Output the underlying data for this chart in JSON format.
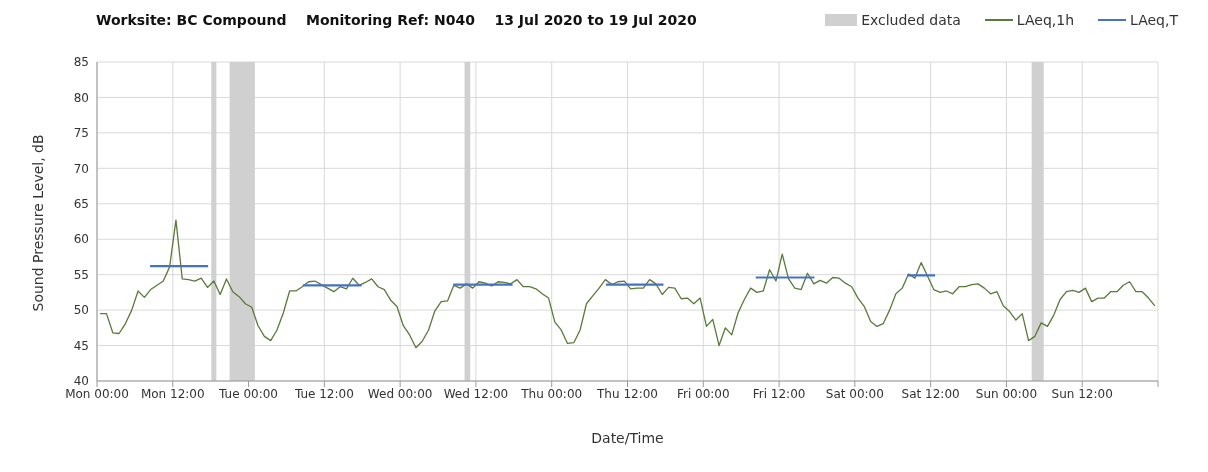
{
  "chart_data": {
    "type": "line",
    "title": "Worksite: BC Compound    Monitoring Ref: N040    13 Jul 2020 to 19 Jul 2020",
    "xlabel": "Date/Time",
    "ylabel": "Sound Pressure Level, dB",
    "xlim": [
      "2020-07-13T00:00",
      "2020-07-20T00:00"
    ],
    "xticks": [
      {
        "value": "2020-07-13T00:00",
        "label": "Mon 00:00"
      },
      {
        "value": "2020-07-13T12:00",
        "label": "Mon 12:00"
      },
      {
        "value": "2020-07-14T00:00",
        "label": "Tue 00:00"
      },
      {
        "value": "2020-07-14T12:00",
        "label": "Tue 12:00"
      },
      {
        "value": "2020-07-15T00:00",
        "label": "Wed 00:00"
      },
      {
        "value": "2020-07-15T12:00",
        "label": "Wed 12:00"
      },
      {
        "value": "2020-07-16T00:00",
        "label": "Thu 00:00"
      },
      {
        "value": "2020-07-16T12:00",
        "label": "Thu 12:00"
      },
      {
        "value": "2020-07-17T00:00",
        "label": "Fri 00:00"
      },
      {
        "value": "2020-07-17T12:00",
        "label": "Fri 12:00"
      },
      {
        "value": "2020-07-18T00:00",
        "label": "Sat 00:00"
      },
      {
        "value": "2020-07-18T12:00",
        "label": "Sat 12:00"
      },
      {
        "value": "2020-07-19T00:00",
        "label": "Sun 00:00"
      },
      {
        "value": "2020-07-19T12:00",
        "label": "Sun 12:00"
      },
      {
        "value": "2020-07-20T00:00",
        "label": null
      }
    ],
    "ylim": [
      40,
      85
    ],
    "yticks": [
      40,
      45,
      50,
      55,
      60,
      65,
      70,
      75,
      80,
      85
    ],
    "grid": true,
    "legend": "top right",
    "marker": "none",
    "line_style": "solid",
    "bands": [
      {
        "axis": "x",
        "from": "2020-07-13T18:06",
        "to": "2020-07-13T18:54",
        "label": "Excluded data",
        "color": "#d0d0d0"
      },
      {
        "axis": "x",
        "from": "2020-07-13T21:00",
        "to": "2020-07-14T01:00",
        "color": "#d0d0d0"
      },
      {
        "axis": "x",
        "from": "2020-07-15T10:12",
        "to": "2020-07-15T11:06",
        "color": "#d0d0d0"
      },
      {
        "axis": "x",
        "from": "2020-07-19T04:00",
        "to": "2020-07-19T05:54",
        "color": "#d0d0d0"
      }
    ],
    "series": [
      {
        "name": "LAeq,1h",
        "color": "#5a7a3a",
        "x": [
          "2020-07-13T00:30",
          "2020-07-13T01:30",
          "2020-07-13T02:30",
          "2020-07-13T03:30",
          "2020-07-13T04:30",
          "2020-07-13T05:30",
          "2020-07-13T06:30",
          "2020-07-13T07:30",
          "2020-07-13T08:30",
          "2020-07-13T09:30",
          "2020-07-13T10:30",
          "2020-07-13T11:30",
          "2020-07-13T12:30",
          "2020-07-13T13:30",
          "2020-07-13T14:30",
          "2020-07-13T15:30",
          "2020-07-13T16:30",
          "2020-07-13T17:30",
          "2020-07-13T18:30",
          "2020-07-13T19:30",
          "2020-07-13T20:30",
          "2020-07-13T21:30",
          "2020-07-13T22:30",
          "2020-07-13T23:30",
          "2020-07-14T00:30",
          "2020-07-14T01:30",
          "2020-07-14T02:30",
          "2020-07-14T03:30",
          "2020-07-14T04:30",
          "2020-07-14T05:30",
          "2020-07-14T06:30",
          "2020-07-14T07:30",
          "2020-07-14T08:30",
          "2020-07-14T09:30",
          "2020-07-14T10:30",
          "2020-07-14T11:30",
          "2020-07-14T12:30",
          "2020-07-14T13:30",
          "2020-07-14T14:30",
          "2020-07-14T15:30",
          "2020-07-14T16:30",
          "2020-07-14T17:30",
          "2020-07-14T18:30",
          "2020-07-14T19:30",
          "2020-07-14T20:30",
          "2020-07-14T21:30",
          "2020-07-14T22:30",
          "2020-07-14T23:30",
          "2020-07-15T00:30",
          "2020-07-15T01:30",
          "2020-07-15T02:30",
          "2020-07-15T03:30",
          "2020-07-15T04:30",
          "2020-07-15T05:30",
          "2020-07-15T06:30",
          "2020-07-15T07:30",
          "2020-07-15T08:30",
          "2020-07-15T09:30",
          "2020-07-15T10:30",
          "2020-07-15T11:30",
          "2020-07-15T12:30",
          "2020-07-15T13:30",
          "2020-07-15T14:30",
          "2020-07-15T15:30",
          "2020-07-15T16:30",
          "2020-07-15T17:30",
          "2020-07-15T18:30",
          "2020-07-15T19:30",
          "2020-07-15T20:30",
          "2020-07-15T21:30",
          "2020-07-15T22:30",
          "2020-07-15T23:30",
          "2020-07-16T00:30",
          "2020-07-16T01:30",
          "2020-07-16T02:30",
          "2020-07-16T03:30",
          "2020-07-16T04:30",
          "2020-07-16T05:30",
          "2020-07-16T06:30",
          "2020-07-16T07:30",
          "2020-07-16T08:30",
          "2020-07-16T09:30",
          "2020-07-16T10:30",
          "2020-07-16T11:30",
          "2020-07-16T12:30",
          "2020-07-16T13:30",
          "2020-07-16T14:30",
          "2020-07-16T15:30",
          "2020-07-16T16:30",
          "2020-07-16T17:30",
          "2020-07-16T18:30",
          "2020-07-16T19:30",
          "2020-07-16T20:30",
          "2020-07-16T21:30",
          "2020-07-16T22:30",
          "2020-07-16T23:30",
          "2020-07-17T00:30",
          "2020-07-17T01:30",
          "2020-07-17T02:30",
          "2020-07-17T03:30",
          "2020-07-17T04:30",
          "2020-07-17T05:30",
          "2020-07-17T06:30",
          "2020-07-17T07:30",
          "2020-07-17T08:30",
          "2020-07-17T09:30",
          "2020-07-17T10:30",
          "2020-07-17T11:30",
          "2020-07-17T12:30",
          "2020-07-17T13:30",
          "2020-07-17T14:30",
          "2020-07-17T15:30",
          "2020-07-17T16:30",
          "2020-07-17T17:30",
          "2020-07-17T18:30",
          "2020-07-17T19:30",
          "2020-07-17T20:30",
          "2020-07-17T21:30",
          "2020-07-17T22:30",
          "2020-07-17T23:30",
          "2020-07-18T00:30",
          "2020-07-18T01:30",
          "2020-07-18T02:30",
          "2020-07-18T03:30",
          "2020-07-18T04:30",
          "2020-07-18T05:30",
          "2020-07-18T06:30",
          "2020-07-18T07:30",
          "2020-07-18T08:30",
          "2020-07-18T09:30",
          "2020-07-18T10:30",
          "2020-07-18T11:30",
          "2020-07-18T12:30",
          "2020-07-18T13:30",
          "2020-07-18T14:30",
          "2020-07-18T15:30",
          "2020-07-18T16:30",
          "2020-07-18T17:30",
          "2020-07-18T18:30",
          "2020-07-18T19:30",
          "2020-07-18T20:30",
          "2020-07-18T21:30",
          "2020-07-18T22:30",
          "2020-07-18T23:30",
          "2020-07-19T00:30",
          "2020-07-19T01:30",
          "2020-07-19T02:30",
          "2020-07-19T03:30",
          "2020-07-19T04:30",
          "2020-07-19T05:30",
          "2020-07-19T06:30",
          "2020-07-19T07:30",
          "2020-07-19T08:30",
          "2020-07-19T09:30",
          "2020-07-19T10:30",
          "2020-07-19T11:30",
          "2020-07-19T12:30",
          "2020-07-19T13:30",
          "2020-07-19T14:30",
          "2020-07-19T15:30",
          "2020-07-19T16:30",
          "2020-07-19T17:30",
          "2020-07-19T18:30",
          "2020-07-19T19:30",
          "2020-07-19T20:30",
          "2020-07-19T21:30",
          "2020-07-19T22:30",
          "2020-07-19T23:30"
        ],
        "values": [
          49.5,
          49.5,
          46.8,
          46.7,
          48.1,
          50.0,
          52.7,
          51.8,
          52.9,
          53.5,
          54.1,
          56.1,
          62.7,
          54.4,
          54.3,
          54.1,
          54.5,
          53.2,
          54.1,
          52.2,
          54.4,
          52.6,
          51.9,
          50.9,
          50.4,
          47.8,
          46.3,
          45.7,
          47.2,
          49.6,
          52.7,
          52.7,
          53.3,
          54.0,
          54.1,
          53.6,
          53.1,
          52.6,
          53.3,
          53.0,
          54.5,
          53.5,
          53.9,
          54.4,
          53.3,
          52.9,
          51.4,
          50.5,
          47.8,
          46.5,
          44.7,
          45.6,
          47.2,
          49.9,
          51.2,
          51.3,
          53.5,
          53.1,
          53.7,
          53.1,
          54.0,
          53.8,
          53.4,
          54.0,
          53.9,
          53.7,
          54.3,
          53.3,
          53.3,
          53.0,
          52.3,
          51.7,
          48.3,
          47.2,
          45.3,
          45.4,
          47.2,
          50.9,
          52.0,
          53.1,
          54.3,
          53.6,
          54.0,
          54.1,
          53.0,
          53.1,
          53.1,
          54.3,
          53.7,
          52.2,
          53.2,
          53.1,
          51.6,
          51.7,
          50.9,
          51.7,
          47.7,
          48.7,
          45.0,
          47.5,
          46.5,
          49.6,
          51.5,
          53.1,
          52.5,
          52.7,
          55.7,
          54.1,
          57.9,
          54.4,
          53.1,
          52.9,
          55.2,
          53.7,
          54.2,
          53.8,
          54.6,
          54.5,
          53.8,
          53.3,
          51.7,
          50.5,
          48.4,
          47.7,
          48.1,
          50.0,
          52.3,
          53.1,
          55.1,
          54.5,
          56.7,
          54.8,
          52.9,
          52.5,
          52.7,
          52.3,
          53.3,
          53.3,
          53.6,
          53.7,
          53.1,
          52.3,
          52.6,
          50.6,
          49.8,
          48.6,
          49.5,
          45.7,
          46.3,
          48.2,
          47.7,
          49.3,
          51.5,
          52.6,
          52.8,
          52.5,
          53.1,
          51.2,
          51.7,
          51.7,
          52.6,
          52.6,
          53.5,
          54.0,
          52.6,
          52.6,
          51.7,
          50.6
        ]
      },
      {
        "name": "LAeq,T",
        "color": "#4472c4",
        "x": [
          "2020-07-13T08:24",
          "2020-07-13T17:36",
          "2020-07-14T01:00",
          "2020-07-14T08:36",
          "2020-07-14T17:54",
          "2020-07-15T01:00",
          "2020-07-15T08:24",
          "2020-07-15T17:48",
          "2020-07-16T01:00",
          "2020-07-16T08:36",
          "2020-07-16T17:42",
          "2020-07-17T01:00",
          "2020-07-17T08:18",
          "2020-07-17T17:36",
          "2020-07-18T01:00",
          "2020-07-18T08:18",
          "2020-07-18T12:42"
        ],
        "values": [
          56.2,
          56.2,
          null,
          53.5,
          53.5,
          null,
          53.6,
          53.6,
          null,
          53.6,
          53.6,
          null,
          54.6,
          54.6,
          null,
          54.9,
          54.9
        ]
      }
    ]
  }
}
